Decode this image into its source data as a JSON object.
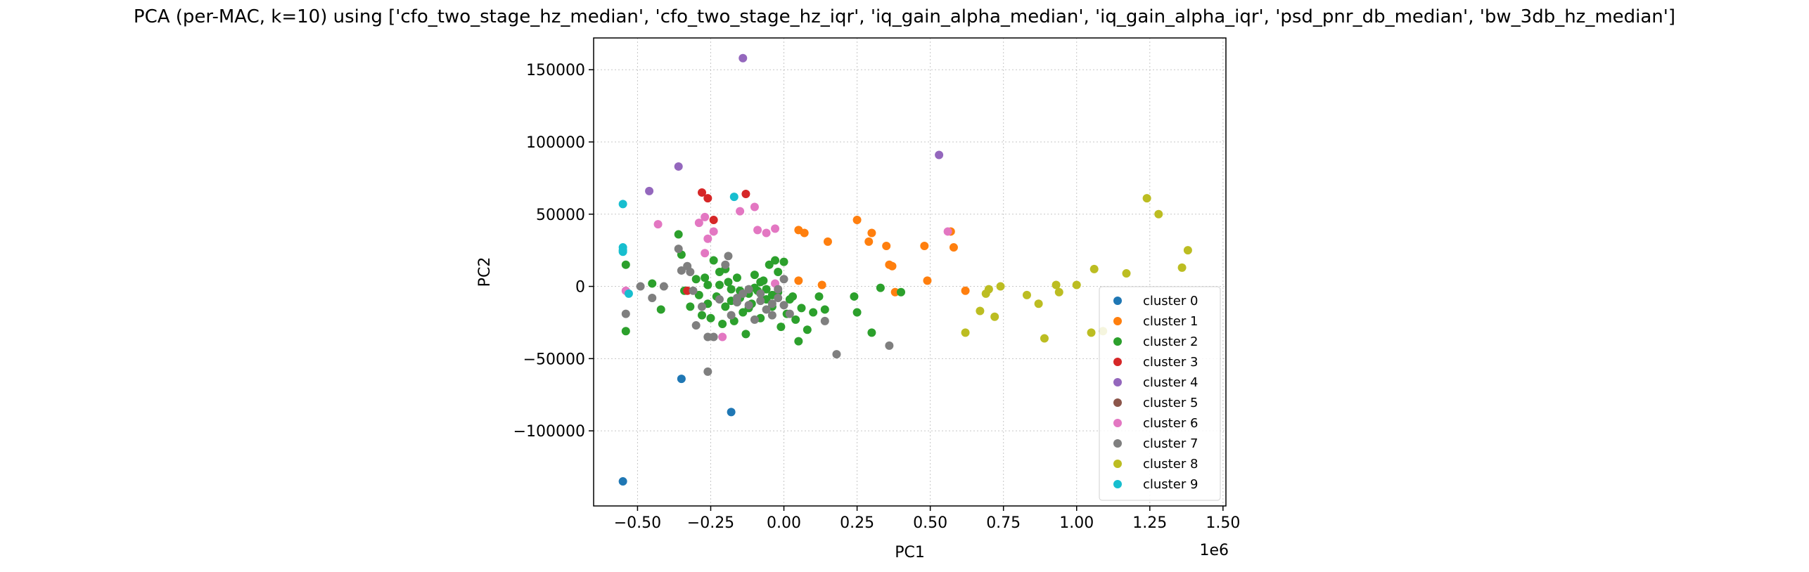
{
  "chart_data": {
    "type": "scatter",
    "title": "PCA (per-MAC, k=10) using ['cfo_two_stage_hz_median', 'cfo_two_stage_hz_iqr', 'iq_gain_alpha_median', 'iq_gain_alpha_iqr', 'psd_pnr_db_median', 'bw_3db_hz_median']",
    "xlabel": "PC1",
    "ylabel": "PC2",
    "x_offset_text": "1e6",
    "xlim": [
      -0.65,
      1.51
    ],
    "ylim": [
      -152000,
      172000
    ],
    "xticks": [
      -0.5,
      -0.25,
      0.0,
      0.25,
      0.5,
      0.75,
      1.0,
      1.25,
      1.5
    ],
    "xtick_labels": [
      "−0.50",
      "−0.25",
      "0.00",
      "0.25",
      "0.50",
      "0.75",
      "1.00",
      "1.25",
      "1.50"
    ],
    "yticks": [
      -100000,
      -50000,
      0,
      50000,
      100000,
      150000
    ],
    "ytick_labels": [
      "−100000",
      "−50000",
      "0",
      "50000",
      "100000",
      "150000"
    ],
    "grid": true,
    "legend_position": "lower-right",
    "series": [
      {
        "name": "cluster 0",
        "color": "#1f77b4",
        "points": [
          [
            -0.55,
            -135000
          ],
          [
            -0.35,
            -64000
          ],
          [
            -0.18,
            -87000
          ]
        ]
      },
      {
        "name": "cluster 1",
        "color": "#ff7f0e",
        "points": [
          [
            0.05,
            39000
          ],
          [
            0.07,
            37000
          ],
          [
            0.15,
            31000
          ],
          [
            0.25,
            46000
          ],
          [
            0.29,
            31000
          ],
          [
            0.3,
            37000
          ],
          [
            0.35,
            28000
          ],
          [
            0.36,
            15000
          ],
          [
            0.37,
            14000
          ],
          [
            0.48,
            28000
          ],
          [
            0.49,
            4000
          ],
          [
            0.57,
            38000
          ],
          [
            0.58,
            27000
          ],
          [
            0.62,
            -3000
          ],
          [
            0.38,
            -4000
          ],
          [
            0.13,
            1000
          ],
          [
            0.05,
            4000
          ]
        ]
      },
      {
        "name": "cluster 2",
        "color": "#2ca02c",
        "points": [
          [
            -0.54,
            15000
          ],
          [
            -0.54,
            -31000
          ],
          [
            -0.45,
            2000
          ],
          [
            -0.42,
            -16000
          ],
          [
            -0.36,
            36000
          ],
          [
            -0.35,
            22000
          ],
          [
            -0.34,
            -3000
          ],
          [
            -0.32,
            -14000
          ],
          [
            -0.3,
            5000
          ],
          [
            -0.29,
            -6000
          ],
          [
            -0.28,
            -20000
          ],
          [
            -0.27,
            6000
          ],
          [
            -0.26,
            -12000
          ],
          [
            -0.25,
            -22000
          ],
          [
            -0.24,
            18000
          ],
          [
            -0.23,
            -7000
          ],
          [
            -0.22,
            1000
          ],
          [
            -0.21,
            -26000
          ],
          [
            -0.2,
            12000
          ],
          [
            -0.2,
            -14000
          ],
          [
            -0.19,
            3000
          ],
          [
            -0.18,
            -2000
          ],
          [
            -0.17,
            -24000
          ],
          [
            -0.16,
            6000
          ],
          [
            -0.15,
            -8000
          ],
          [
            -0.14,
            -18000
          ],
          [
            -0.13,
            -33000
          ],
          [
            -0.12,
            -5000
          ],
          [
            -0.11,
            -12000
          ],
          [
            -0.1,
            8000
          ],
          [
            -0.09,
            -3000
          ],
          [
            -0.08,
            -22000
          ],
          [
            -0.07,
            4000
          ],
          [
            -0.06,
            -9000
          ],
          [
            -0.05,
            15000
          ],
          [
            -0.04,
            -14000
          ],
          [
            -0.03,
            18000
          ],
          [
            -0.02,
            -4000
          ],
          [
            -0.01,
            -28000
          ],
          [
            0.0,
            17000
          ],
          [
            0.01,
            -19000
          ],
          [
            0.02,
            -9000
          ],
          [
            0.03,
            -7000
          ],
          [
            0.04,
            -23000
          ],
          [
            0.05,
            -38000
          ],
          [
            0.06,
            -15000
          ],
          [
            0.08,
            -30000
          ],
          [
            0.1,
            -18000
          ],
          [
            0.12,
            -7000
          ],
          [
            0.14,
            -16000
          ],
          [
            0.24,
            -7000
          ],
          [
            0.25,
            -18000
          ],
          [
            0.3,
            -32000
          ],
          [
            0.33,
            -1000
          ],
          [
            0.4,
            -4000
          ],
          [
            -0.08,
            3000
          ],
          [
            -0.06,
            -2000
          ],
          [
            -0.04,
            -6000
          ],
          [
            -0.02,
            10000
          ],
          [
            -0.1,
            -1000
          ],
          [
            -0.12,
            -15000
          ],
          [
            -0.15,
            -3000
          ],
          [
            -0.18,
            -10000
          ],
          [
            -0.22,
            10000
          ],
          [
            -0.26,
            1000
          ]
        ]
      },
      {
        "name": "cluster 3",
        "color": "#d62728",
        "points": [
          [
            -0.28,
            65000
          ],
          [
            -0.26,
            61000
          ],
          [
            -0.24,
            46000
          ],
          [
            -0.13,
            64000
          ],
          [
            -0.33,
            -3000
          ]
        ]
      },
      {
        "name": "cluster 4",
        "color": "#9467bd",
        "points": [
          [
            -0.14,
            158000
          ],
          [
            -0.36,
            83000
          ],
          [
            -0.46,
            66000
          ],
          [
            0.53,
            91000
          ]
        ]
      },
      {
        "name": "cluster 5",
        "color": "#8c564b",
        "points": []
      },
      {
        "name": "cluster 6",
        "color": "#e377c2",
        "points": [
          [
            -0.43,
            43000
          ],
          [
            -0.29,
            44000
          ],
          [
            -0.27,
            48000
          ],
          [
            -0.26,
            33000
          ],
          [
            -0.24,
            38000
          ],
          [
            -0.27,
            23000
          ],
          [
            -0.1,
            55000
          ],
          [
            -0.15,
            52000
          ],
          [
            -0.09,
            39000
          ],
          [
            -0.03,
            40000
          ],
          [
            -0.06,
            37000
          ],
          [
            -0.03,
            2000
          ],
          [
            -0.54,
            -3000
          ],
          [
            -0.21,
            -35000
          ],
          [
            0.56,
            38000
          ]
        ]
      },
      {
        "name": "cluster 7",
        "color": "#7f7f7f",
        "points": [
          [
            -0.54,
            -19000
          ],
          [
            -0.49,
            0
          ],
          [
            -0.45,
            -8000
          ],
          [
            -0.41,
            0
          ],
          [
            -0.36,
            26000
          ],
          [
            -0.35,
            11000
          ],
          [
            -0.33,
            14000
          ],
          [
            -0.31,
            -3000
          ],
          [
            -0.3,
            -27000
          ],
          [
            -0.28,
            -14000
          ],
          [
            -0.26,
            -35000
          ],
          [
            -0.26,
            -59000
          ],
          [
            -0.24,
            -35000
          ],
          [
            -0.22,
            -9000
          ],
          [
            -0.19,
            21000
          ],
          [
            -0.18,
            -20000
          ],
          [
            -0.16,
            -11000
          ],
          [
            -0.14,
            -5000
          ],
          [
            -0.12,
            -13000
          ],
          [
            -0.1,
            -23000
          ],
          [
            -0.08,
            -10000
          ],
          [
            -0.06,
            -16000
          ],
          [
            -0.04,
            -20000
          ],
          [
            -0.02,
            -8000
          ],
          [
            0.0,
            -13000
          ],
          [
            0.02,
            -19000
          ],
          [
            0.14,
            -24000
          ],
          [
            0.18,
            -47000
          ],
          [
            0.36,
            -41000
          ],
          [
            -0.32,
            10000
          ],
          [
            -0.2,
            15000
          ],
          [
            -0.16,
            -8000
          ],
          [
            -0.12,
            -2000
          ],
          [
            -0.08,
            -5000
          ],
          [
            -0.04,
            -12000
          ],
          [
            -0.02,
            -2000
          ],
          [
            0.0,
            5000
          ]
        ]
      },
      {
        "name": "cluster 8",
        "color": "#bcbd22",
        "points": [
          [
            0.62,
            -32000
          ],
          [
            0.67,
            -17000
          ],
          [
            0.69,
            -5000
          ],
          [
            0.7,
            -2000
          ],
          [
            0.72,
            -21000
          ],
          [
            0.74,
            0
          ],
          [
            0.83,
            -6000
          ],
          [
            0.87,
            -12000
          ],
          [
            0.89,
            -36000
          ],
          [
            0.93,
            1000
          ],
          [
            0.94,
            -4000
          ],
          [
            1.0,
            1000
          ],
          [
            1.05,
            -32000
          ],
          [
            1.06,
            12000
          ],
          [
            1.09,
            -31000
          ],
          [
            1.17,
            9000
          ],
          [
            1.24,
            61000
          ],
          [
            1.28,
            50000
          ],
          [
            1.36,
            13000
          ],
          [
            1.38,
            25000
          ]
        ]
      },
      {
        "name": "cluster 9",
        "color": "#17becf",
        "points": [
          [
            -0.55,
            57000
          ],
          [
            -0.55,
            27000
          ],
          [
            -0.55,
            25000
          ],
          [
            -0.55,
            24000
          ],
          [
            -0.53,
            -5000
          ],
          [
            -0.17,
            62000
          ]
        ]
      }
    ]
  }
}
